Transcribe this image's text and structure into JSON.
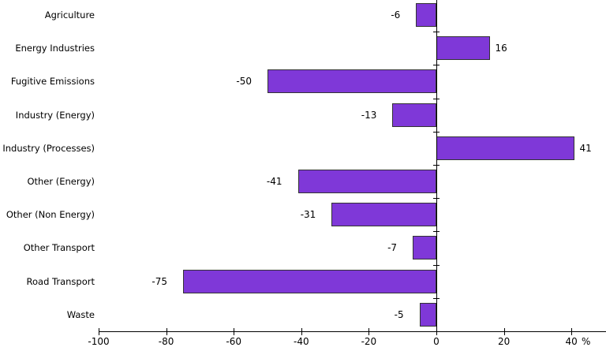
{
  "chart_data": {
    "type": "bar",
    "orientation": "horizontal",
    "title": "",
    "categories": [
      "Agriculture",
      "Energy Industries",
      "Fugitive Emissions",
      "Industry (Energy)",
      "Industry (Processes)",
      "Other (Energy)",
      "Other (Non Energy)",
      "Other Transport",
      "Road Transport",
      "Waste"
    ],
    "values": [
      -6,
      16,
      -50,
      -13,
      41,
      -41,
      -31,
      -7,
      -75,
      -5
    ],
    "value_labels": [
      "-6",
      "16",
      "-50",
      "-13",
      "41",
      "-41",
      "-31",
      "-7",
      "-75",
      "-5"
    ],
    "x_ticks": [
      -100,
      -80,
      -60,
      -40,
      -20,
      0,
      20,
      40
    ],
    "x_tick_labels": [
      "-100",
      "-80",
      "-60",
      "-40",
      "-20",
      "0",
      "20",
      "40"
    ],
    "x_unit": "%",
    "xlim": [
      -100,
      50
    ],
    "grid": false,
    "legend": null,
    "colors": {
      "bar_fill": "#7f38d8",
      "bar_border": "#333333",
      "axis": "#000000",
      "text": "#000000",
      "background": "#ffffff"
    }
  }
}
